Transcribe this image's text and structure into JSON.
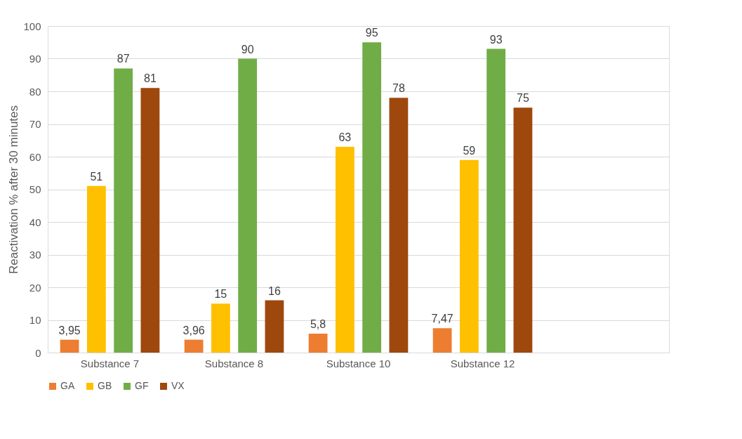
{
  "chart_data": {
    "type": "bar",
    "ylabel": "Reactivation % after 30 minutes",
    "categories": [
      "Substance 7",
      "Substance 8",
      "Substance 10",
      "Substance 12",
      null
    ],
    "series": [
      {
        "name": "GA",
        "color": "#ed7d31",
        "values": [
          3.95,
          3.96,
          5.8,
          7.47,
          null
        ],
        "value_labels": [
          "3,95",
          "3,96",
          "5,8",
          "7,47",
          null
        ]
      },
      {
        "name": "GB",
        "color": "#ffc000",
        "values": [
          51,
          15,
          63,
          59,
          null
        ],
        "value_labels": [
          "51",
          "15",
          "63",
          "59",
          null
        ]
      },
      {
        "name": "GF",
        "color": "#70ad47",
        "values": [
          87,
          90,
          95,
          93,
          null
        ],
        "value_labels": [
          "87",
          "90",
          "95",
          "93",
          null
        ]
      },
      {
        "name": "VX",
        "color": "#9e480e",
        "values": [
          81,
          16,
          78,
          75,
          null
        ],
        "value_labels": [
          "81",
          "16",
          "78",
          "75",
          null
        ]
      }
    ],
    "ylim": [
      0,
      100
    ],
    "yticks": [
      0,
      10,
      20,
      30,
      40,
      50,
      60,
      70,
      80,
      90,
      100
    ],
    "grid": "y",
    "legend": "bottom"
  }
}
